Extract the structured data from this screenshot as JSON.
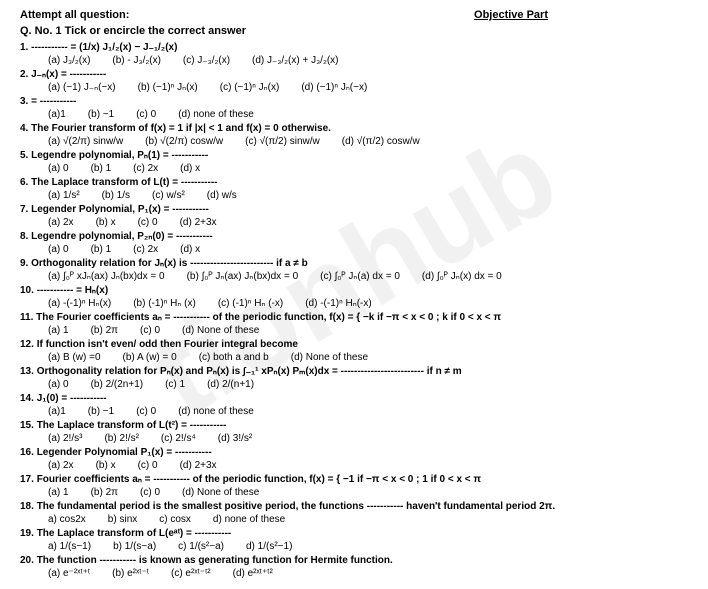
{
  "header": {
    "attempt": "Attempt all question:",
    "objective": "Objective Part"
  },
  "title": "Q. No. 1 Tick or encircle the correct answer",
  "questions": [
    {
      "num": "1.",
      "stem": "----------- = (1/x) J₁/₂(x) − J₋₁/₂(x)",
      "opts": [
        "(a) J₃/₂(x)",
        "(b) - J₃/₂(x)",
        "(c) J₋₃/₂(x)",
        "(d) J₋₃/₂(x) + J₃/₂(x)"
      ]
    },
    {
      "num": "2.",
      "stem": "J₋ₙ(x) = -----------",
      "opts": [
        "(a) (−1) J₋ₙ(−x)",
        "(b) (−1)ⁿ Jₙ(x)",
        "(c) (−1)ⁿ Jₙ(x)",
        "(d) (−1)ⁿ Jₙ(−x)"
      ]
    },
    {
      "num": "3.",
      "stem": "= -----------",
      "opts": [
        "(a)1",
        "(b) −1",
        "(c) 0",
        "(d) none of these"
      ]
    },
    {
      "num": "4.",
      "stem": "The Fourier transform of f(x) = 1 if |x| < 1 and f(x) = 0 otherwise.",
      "opts": [
        "(a) √(2/π) sinw/w",
        "(b) √(2/π) cosw/w",
        "(c) √(π/2) sinw/w",
        "(d) √(π/2) cosw/w"
      ]
    },
    {
      "num": "5.",
      "stem": "Legendre polynomial,   Pₙ(1) = -----------",
      "opts": [
        "(a) 0",
        "(b) 1",
        "(c) 2x",
        "(d) x"
      ]
    },
    {
      "num": "6.",
      "stem": "The Laplace transform of L(t) = -----------",
      "opts": [
        "(a) 1/s²",
        "(b) 1/s",
        "(c) w/s²",
        "(d) w/s"
      ]
    },
    {
      "num": "7.",
      "stem": "Legender Polynomial, P₁(x) = -----------",
      "opts": [
        "(a) 2x",
        "(b) x",
        "(c) 0",
        "(d) 2+3x"
      ]
    },
    {
      "num": "8.",
      "stem": "Legendre polynomial,   P₂ₙ(0) = -----------",
      "opts": [
        "(a) 0",
        "(b) 1",
        "(c) 2x",
        "(d) x"
      ]
    },
    {
      "num": "9.",
      "stem": "Orthogonality relation for Jₙ(x) is ------------------------- if a ≠ b",
      "opts": [
        "(a) ∫₀ᴾ xJₙ(ax) Jₙ(bx)dx = 0",
        "(b) ∫₀ᴾ Jₙ(ax) Jₙ(bx)dx = 0",
        "(c) ∫₀ᴾ Jₙ(a) dx = 0",
        "(d) ∫₀ᴾ Jₙ(x) dx = 0"
      ]
    },
    {
      "num": "10.",
      "stem": "----------- = Hₙ(x)",
      "opts": [
        "(a) -(-1)ⁿ Hₙ(x)",
        "(b) (-1)ⁿ Hₙ (x)",
        "(c) (-1)ⁿ Hₙ (-x)",
        "(d) -(-1)ⁿ Hₙ(-x)"
      ]
    },
    {
      "num": "11.",
      "stem": "The Fourier coefficients aₙ = ----------- of the periodic function, f(x) = { −k   if   −π < x < 0 ;  k   if   0 < x < π",
      "opts": [
        "(a) 1",
        "(b) 2π",
        "(c) 0",
        "(d) None of these"
      ]
    },
    {
      "num": "12.",
      "stem": "If function isn't even/ odd then Fourier integral become",
      "opts": [
        "(a) B (w) =0",
        "(b) A (w) = 0",
        "(c) both a and b",
        "(d) None of these"
      ]
    },
    {
      "num": "13.",
      "stem": "Orthogonality relation for Pₙ(x) and Pₙ(x) is  ∫₋₁¹ xPₙ(x) Pₘ(x)dx = ------------------------- if n ≠ m",
      "opts": [
        "(a) 0",
        "(b) 2/(2n+1)",
        "(c) 1",
        "(d) 2/(n+1)"
      ]
    },
    {
      "num": "14.",
      "stem": "J₁(0) = -----------",
      "opts": [
        "(a)1",
        "(b) −1",
        "(c) 0",
        "(d) none of these"
      ]
    },
    {
      "num": "15.",
      "stem": "The Laplace transform of L(t²) = -----------",
      "opts": [
        "(a) 2!/s³",
        "(b) 2!/s²",
        "(c) 2!/s⁴",
        "(d) 3!/s²"
      ]
    },
    {
      "num": "16.",
      "stem": "Legender Polynomial P₁(x) = -----------",
      "opts": [
        "(a) 2x",
        "(b) x",
        "(c) 0",
        "(d) 2+3x"
      ]
    },
    {
      "num": "17.",
      "stem": "Fourier coefficients aₙ = ----------- of the periodic function, f(x) = { −1   if   −π < x < 0 ;  1   if   0 < x < π",
      "opts": [
        "(a) 1",
        "(b) 2π",
        "(c) 0",
        "(d) None of these"
      ]
    },
    {
      "num": "18.",
      "stem": "The fundamental period is the smallest positive period, the functions ----------- haven't fundamental period 2π.",
      "opts": [
        "a) cos2x",
        "b)   sinx",
        "c) cosx",
        "d) none of these"
      ]
    },
    {
      "num": "19.",
      "stem": "The Laplace transform of L(eᵃᵗ) = -----------",
      "opts": [
        "a) 1/(s−1)",
        "b) 1/(s−a)",
        "c) 1/(s²−a)",
        "d) 1/(s²−1)"
      ]
    },
    {
      "num": "20.",
      "stem": "The function ----------- is known as generating function for Hermite function.",
      "opts": [
        "(a) e⁻²ˣᵗ⁺ᵗ",
        "(b) e²ˣᵗ⁻ᵗ",
        "(c) e²ˣᵗ⁻ᵗ²",
        "(d) e²ˣᵗ⁺ᵗ²"
      ]
    }
  ]
}
